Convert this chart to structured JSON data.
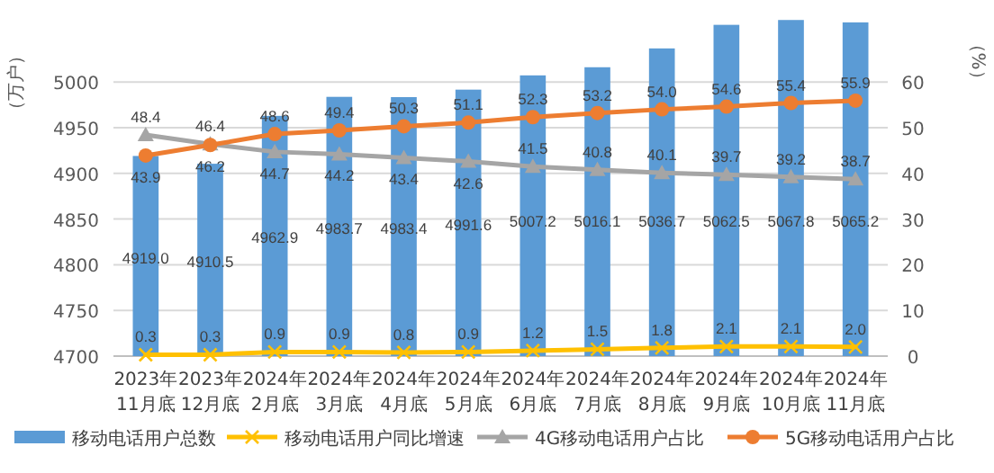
{
  "chart_data": {
    "type": "bar",
    "ylabel": "（万户）",
    "y2label": "（%）",
    "categories": [
      "2023年\n11月底",
      "2023年\n12月底",
      "2024年\n2月底",
      "2024年\n3月底",
      "2024年\n4月底",
      "2024年\n5月底",
      "2024年\n6月底",
      "2024年\n7月底",
      "2024年\n8月底",
      "2024年\n9月底",
      "2024年\n10月底",
      "2024年\n11月底"
    ],
    "series": [
      {
        "name": "移动电话用户总数",
        "color": "#5b9bd5",
        "values": [
          4919.0,
          4910.5,
          4962.9,
          4983.7,
          4983.4,
          4991.6,
          5007.2,
          5016.1,
          5036.7,
          5062.5,
          5067.8,
          5065.2
        ],
        "value_labels": [
          "4919.0",
          "4910.5",
          "4962.9",
          "4983.7",
          "4983.4",
          "4991.6",
          "5007.2",
          "5016.1",
          "5036.7",
          "5062.5",
          "5067.8",
          "5065.2"
        ]
      },
      {
        "name": "移动电话用户同比增速",
        "type": "line",
        "axis": "y2",
        "marker": "cross",
        "color": "#ffc000",
        "values": [
          0.3,
          0.3,
          0.9,
          0.9,
          0.8,
          0.9,
          1.2,
          1.5,
          1.8,
          2.1,
          2.1,
          2.0
        ],
        "value_labels": [
          "0.3",
          "0.3",
          "0.9",
          "0.9",
          "0.8",
          "0.9",
          "1.2",
          "1.5",
          "1.8",
          "2.1",
          "2.1",
          "2.0"
        ]
      },
      {
        "name": "4G移动电话用户占比",
        "type": "line",
        "axis": "y2",
        "marker": "triangle",
        "color": "#a5a5a5",
        "values": [
          48.4,
          46.4,
          44.7,
          44.2,
          43.4,
          42.6,
          41.5,
          40.8,
          40.1,
          39.7,
          39.2,
          38.7
        ],
        "value_labels": [
          "48.4",
          "46.4",
          "44.7",
          "44.2",
          "43.4",
          "42.6",
          "41.5",
          "40.8",
          "40.1",
          "39.7",
          "39.2",
          "38.7"
        ]
      },
      {
        "name": "5G移动电话用户占比",
        "type": "line",
        "axis": "y2",
        "marker": "circle",
        "color": "#ed7d31",
        "values": [
          43.9,
          46.2,
          48.6,
          49.4,
          50.3,
          51.1,
          52.3,
          53.2,
          54.0,
          54.6,
          55.4,
          55.9
        ],
        "value_labels": [
          "43.9",
          "46.2",
          "48.6",
          "49.4",
          "50.3",
          "51.1",
          "52.3",
          "53.2",
          "54.0",
          "54.6",
          "55.4",
          "55.9"
        ]
      }
    ],
    "ylim": [
      4700,
      5070
    ],
    "yticks": [
      4700,
      4750,
      4800,
      4850,
      4900,
      4950,
      5000
    ],
    "y2lim": [
      0,
      74
    ],
    "y2ticks": [
      0,
      10,
      20,
      30,
      40,
      50,
      60
    ],
    "grid": true,
    "legend": "bottom",
    "line_style": "solid"
  }
}
